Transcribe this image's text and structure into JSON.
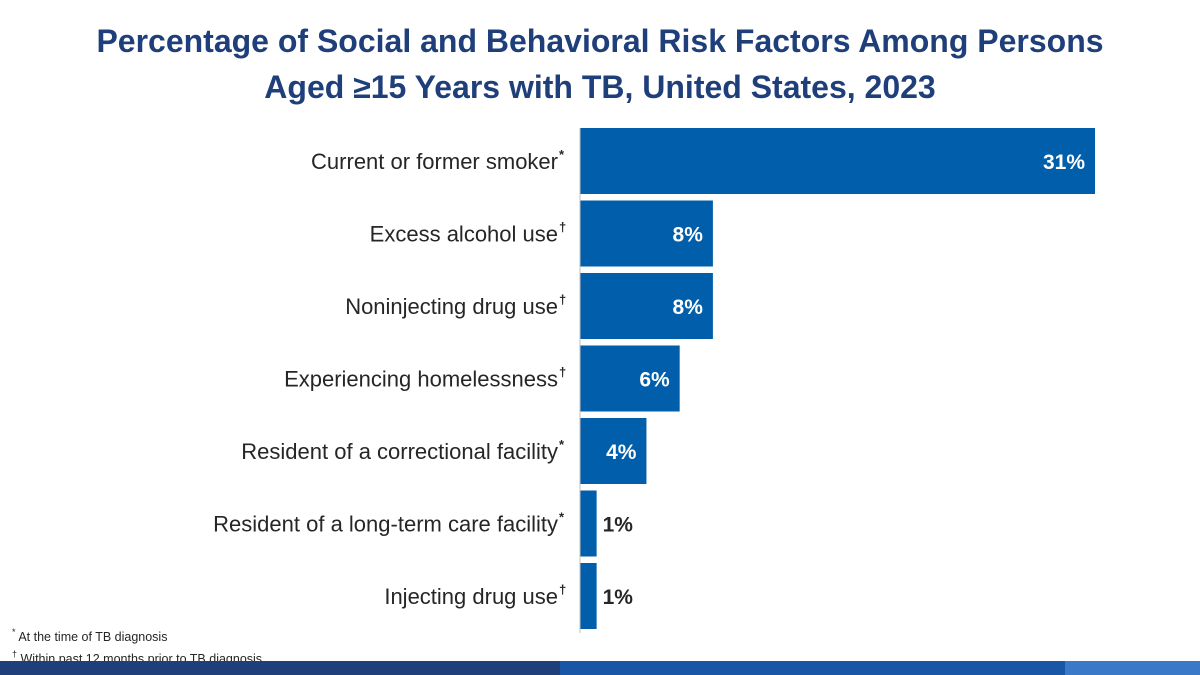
{
  "chart_data": {
    "type": "bar",
    "orientation": "horizontal",
    "title_lines": [
      "Percentage of Social and Behavioral Risk Factors Among Persons",
      "Aged ≥15 Years with TB, United States, 2023"
    ],
    "categories": [
      "Current or former smoker",
      "Excess alcohol use",
      "Noninjecting drug use",
      "Experiencing homelessness",
      "Resident of a correctional facility",
      "Resident of a long-term care facility",
      "Injecting drug use"
    ],
    "markers": [
      "*",
      "†",
      "†",
      "†",
      "*",
      "*",
      "†"
    ],
    "values": [
      31,
      8,
      8,
      6,
      4,
      1,
      1
    ],
    "value_labels": [
      "31%",
      "8%",
      "8%",
      "6%",
      "4%",
      "1%",
      "1%"
    ],
    "xlim": [
      0,
      31
    ],
    "xlabel": "",
    "ylabel": "",
    "grid": false,
    "legend": "none"
  },
  "footnotes": [
    {
      "mark": "*",
      "text": "At the time of TB diagnosis"
    },
    {
      "mark": "†",
      "text": "Within past 12 months prior to TB diagnosis"
    }
  ],
  "colors": {
    "title": "#1f3f7a",
    "bar": "#005eaa",
    "bar_label_inside": "#ffffff",
    "bar_label_outside": "#262626",
    "category_text": "#262626",
    "axis": "#bfbfbf",
    "band_dark": "#1f3f7a",
    "band_mid": "#1a56a8",
    "band_light": "#3a78c8"
  }
}
